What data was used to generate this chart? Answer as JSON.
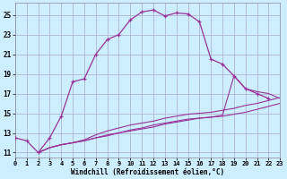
{
  "xlabel": "Windchill (Refroidissement éolien,°C)",
  "bg_color": "#cceeff",
  "grid_color": "#aaaacc",
  "line_color": "#993399",
  "xlim": [
    0,
    23
  ],
  "ylim": [
    10.5,
    26.2
  ],
  "xticks": [
    0,
    1,
    2,
    3,
    4,
    5,
    6,
    7,
    8,
    9,
    10,
    11,
    12,
    13,
    14,
    15,
    16,
    17,
    18,
    19,
    20,
    21,
    22,
    23
  ],
  "yticks": [
    11,
    13,
    15,
    17,
    19,
    21,
    23,
    25
  ],
  "curve1_x": [
    0,
    1,
    2,
    3,
    4,
    5,
    6,
    7,
    8,
    9,
    10,
    11,
    12,
    13,
    14,
    15,
    16,
    17,
    18,
    19,
    20,
    21,
    22
  ],
  "curve1_y": [
    12.5,
    12.2,
    11.0,
    12.5,
    14.7,
    18.2,
    18.5,
    21.0,
    22.5,
    23.0,
    24.5,
    25.3,
    25.5,
    24.9,
    25.2,
    25.1,
    24.3,
    20.5,
    20.0,
    18.8,
    17.5,
    17.0,
    16.5
  ],
  "curve2_x": [
    2,
    3,
    4,
    5,
    6,
    7,
    8,
    9,
    10,
    11,
    12,
    13,
    14,
    15,
    16,
    17,
    18,
    19,
    20,
    21,
    22,
    23
  ],
  "curve2_y": [
    11.0,
    11.5,
    11.8,
    12.0,
    12.2,
    12.5,
    12.8,
    13.0,
    13.3,
    13.5,
    13.8,
    14.0,
    14.2,
    14.4,
    14.5,
    14.6,
    14.8,
    18.8,
    17.5,
    17.2,
    17.0,
    16.5
  ],
  "curve3_x": [
    2,
    3,
    4,
    5,
    6,
    7,
    8,
    9,
    10,
    11,
    12,
    13,
    14,
    15,
    16,
    17,
    18,
    19,
    20,
    21,
    22,
    23
  ],
  "curve3_y": [
    11.0,
    11.5,
    11.8,
    12.0,
    12.3,
    12.8,
    13.2,
    13.5,
    13.8,
    14.0,
    14.2,
    14.5,
    14.7,
    14.9,
    15.0,
    15.1,
    15.3,
    15.5,
    15.8,
    16.0,
    16.3,
    16.6
  ],
  "curve4_x": [
    2,
    3,
    4,
    5,
    6,
    7,
    8,
    9,
    10,
    11,
    12,
    13,
    14,
    15,
    16,
    17,
    18,
    19,
    20,
    21,
    22,
    23
  ],
  "curve4_y": [
    11.0,
    11.5,
    11.8,
    12.0,
    12.2,
    12.5,
    12.7,
    13.0,
    13.2,
    13.4,
    13.6,
    13.9,
    14.1,
    14.3,
    14.5,
    14.6,
    14.7,
    14.9,
    15.1,
    15.4,
    15.7,
    16.0
  ]
}
